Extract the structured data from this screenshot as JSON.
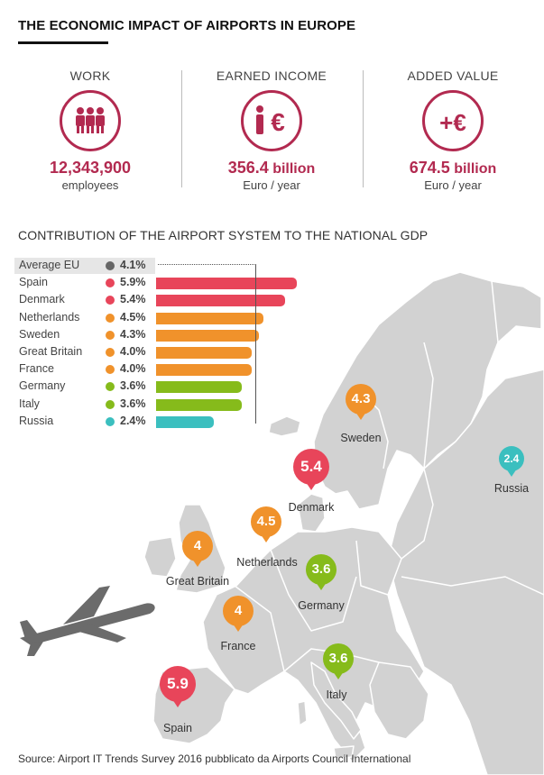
{
  "title": "THE ECONOMIC IMPACT OF AIRPORTS IN EUROPE",
  "stats": [
    {
      "label": "WORK",
      "value": "12,343,900",
      "value_suffix": "",
      "unit": "employees",
      "icon": "workers-icon"
    },
    {
      "label": "EARNED INCOME",
      "value": "356.4",
      "value_suffix": "billion",
      "unit": "Euro / year",
      "icon": "person-euro-icon",
      "icon_text": "€"
    },
    {
      "label": "ADDED VALUE",
      "value": "674.5",
      "value_suffix": "billion",
      "unit": "Euro / year",
      "icon": "plus-euro-icon",
      "icon_text": "+€"
    }
  ],
  "section_title": "CONTRIBUTION OF THE AIRPORT SYSTEM TO THE NATIONAL GDP",
  "colors": {
    "accent": "#b22a50",
    "red": "#e8455a",
    "orange": "#f0922b",
    "green": "#86bb1b",
    "teal": "#3bbfbf",
    "gray": "#666666",
    "map_land": "#d2d2d2",
    "map_border": "#ffffff"
  },
  "chart_data": {
    "type": "bar",
    "orientation": "horizontal",
    "unit": "%",
    "categories": [
      "Average EU",
      "Spain",
      "Denmark",
      "Netherlands",
      "Sweden",
      "Great Britain",
      "France",
      "Germany",
      "Italy",
      "Russia"
    ],
    "values": [
      4.1,
      5.9,
      5.4,
      4.5,
      4.3,
      4.0,
      4.0,
      3.6,
      3.6,
      2.4
    ],
    "value_labels": [
      "4.1%",
      "5.9%",
      "5.4%",
      "4.5%",
      "4.3%",
      "4.0%",
      "4.0%",
      "3.6%",
      "3.6%",
      "2.4%"
    ],
    "color_groups": [
      "gray",
      "red",
      "red",
      "orange",
      "orange",
      "orange",
      "orange",
      "green",
      "green",
      "teal"
    ],
    "reference_line": {
      "label": "Average EU",
      "value": 4.1
    }
  },
  "map_pins": [
    {
      "country": "Sweden",
      "value": "4.3",
      "color": "orange"
    },
    {
      "country": "Russia",
      "value": "2.4",
      "color": "teal"
    },
    {
      "country": "Denmark",
      "value": "5.4",
      "color": "red"
    },
    {
      "country": "Netherlands",
      "value": "4.5",
      "color": "orange"
    },
    {
      "country": "Great Britain",
      "value": "4",
      "color": "orange"
    },
    {
      "country": "Germany",
      "value": "3.6",
      "color": "green"
    },
    {
      "country": "France",
      "value": "4",
      "color": "orange"
    },
    {
      "country": "Italy",
      "value": "3.6",
      "color": "green"
    },
    {
      "country": "Spain",
      "value": "5.9",
      "color": "red"
    }
  ],
  "source": "Source: Airport IT Trends Survey 2016 pubblicato da Airports Council International"
}
